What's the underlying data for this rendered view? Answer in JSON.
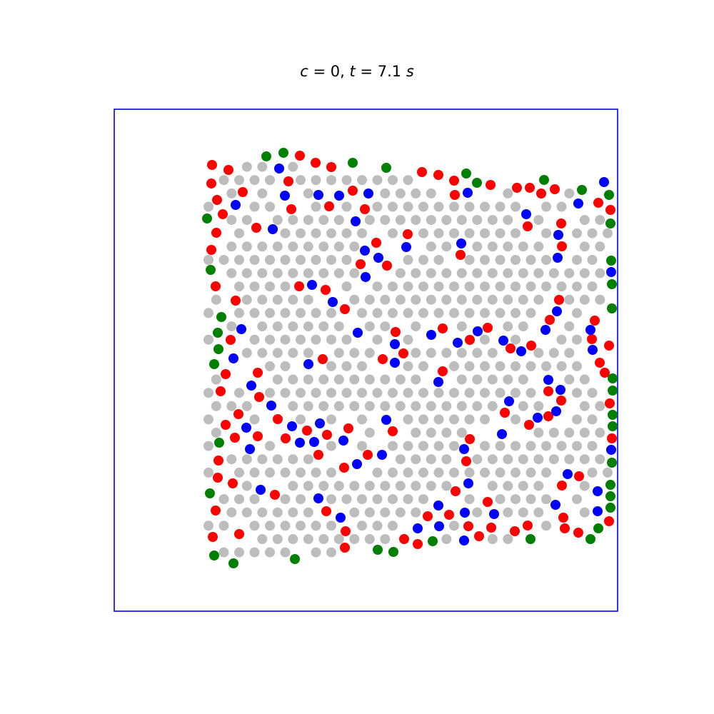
{
  "chart_data": {
    "type": "scatter",
    "title": "c = 0, t = 7.1 s",
    "xlabel": "",
    "ylabel": "",
    "grid": false,
    "frame_color": "#0000ff",
    "colors": {
      "gray": "#bdbdbd",
      "red": "#ff0000",
      "blue": "#0000ff",
      "green": "#008000"
    },
    "highlighted": {
      "red": [
        [
          297,
          231
        ],
        [
          320,
          238
        ],
        [
          296,
          257
        ],
        [
          420,
          218
        ],
        [
          442,
          228
        ],
        [
          464,
          234
        ],
        [
          404,
          254
        ],
        [
          340,
          269
        ],
        [
          304,
          280
        ],
        [
          312,
          300
        ],
        [
          408,
          293
        ],
        [
          461,
          289
        ],
        [
          494,
          267
        ],
        [
          511,
          293
        ],
        [
          303,
          326
        ],
        [
          359,
          319
        ],
        [
          296,
          350
        ],
        [
          527,
          340
        ],
        [
          542,
          372
        ],
        [
          505,
          370
        ],
        [
          571,
          328
        ],
        [
          591,
          241
        ],
        [
          614,
          245
        ],
        [
          636,
          253
        ],
        [
          637,
          273
        ],
        [
          687,
          259
        ],
        [
          724,
          263
        ],
        [
          742,
          263
        ],
        [
          758,
          271
        ],
        [
          777,
          265
        ],
        [
          739,
          317
        ],
        [
          786,
          313
        ],
        [
          645,
          357
        ],
        [
          787,
          345
        ],
        [
          302,
          401
        ],
        [
          330,
          421
        ],
        [
          419,
          401
        ],
        [
          456,
          406
        ],
        [
          483,
          433
        ],
        [
          554,
          465
        ],
        [
          565,
          495
        ],
        [
          536,
          503
        ],
        [
          620,
          460
        ],
        [
          658,
          476
        ],
        [
          683,
          459
        ],
        [
          715,
          488
        ],
        [
          744,
          484
        ],
        [
          783,
          420
        ],
        [
          770,
          448
        ],
        [
          829,
          475
        ],
        [
          853,
          484
        ],
        [
          833,
          449
        ],
        [
          840,
          508
        ],
        [
          847,
          522
        ],
        [
          323,
          476
        ],
        [
          316,
          524
        ],
        [
          361,
          522
        ],
        [
          309,
          548
        ],
        [
          363,
          556
        ],
        [
          334,
          580
        ],
        [
          316,
          595
        ],
        [
          329,
          613
        ],
        [
          361,
          611
        ],
        [
          389,
          587
        ],
        [
          400,
          614
        ],
        [
          430,
          603
        ],
        [
          458,
          609
        ],
        [
          488,
          600
        ],
        [
          452,
          503
        ],
        [
          550,
          604
        ],
        [
          620,
          520
        ],
        [
          768,
          548
        ],
        [
          786,
          561
        ],
        [
          707,
          578
        ],
        [
          741,
          595
        ],
        [
          768,
          583
        ],
        [
          306,
          645
        ],
        [
          305,
          669
        ],
        [
          326,
          677
        ],
        [
          385,
          693
        ],
        [
          446,
          637
        ],
        [
          482,
          655
        ],
        [
          515,
          637
        ],
        [
          658,
          615
        ],
        [
          653,
          646
        ],
        [
          638,
          688
        ],
        [
          683,
          703
        ],
        [
          302,
          715
        ],
        [
          457,
          716
        ],
        [
          484,
          744
        ],
        [
          483,
          767
        ],
        [
          335,
          748
        ],
        [
          298,
          752
        ],
        [
          599,
          723
        ],
        [
          629,
          721
        ],
        [
          656,
          737
        ],
        [
          671,
          751
        ],
        [
          688,
          739
        ],
        [
          721,
          744
        ],
        [
          739,
          736
        ],
        [
          789,
          725
        ],
        [
          791,
          740
        ],
        [
          810,
          746
        ],
        [
          787,
          680
        ],
        [
          811,
          667
        ],
        [
          566,
          755
        ],
        [
          585,
          762
        ],
        [
          853,
          730
        ],
        [
          855,
          294
        ],
        [
          838,
          284
        ],
        [
          854,
          565
        ],
        [
          857,
          614
        ]
      ],
      "blue": [
        [
          391,
          236
        ],
        [
          330,
          287
        ],
        [
          399,
          274
        ],
        [
          446,
          273
        ],
        [
          475,
          274
        ],
        [
          516,
          271
        ],
        [
          498,
          310
        ],
        [
          382,
          321
        ],
        [
          511,
          351
        ],
        [
          569,
          346
        ],
        [
          512,
          388
        ],
        [
          530,
          361
        ],
        [
          655,
          270
        ],
        [
          646,
          341
        ],
        [
          737,
          300
        ],
        [
          782,
          329
        ],
        [
          781,
          361
        ],
        [
          846,
          255
        ],
        [
          810,
          285
        ],
        [
          437,
          399
        ],
        [
          466,
          423
        ],
        [
          501,
          466
        ],
        [
          553,
          482
        ],
        [
          553,
          508
        ],
        [
          604,
          469
        ],
        [
          641,
          480
        ],
        [
          669,
          464
        ],
        [
          705,
          477
        ],
        [
          730,
          492
        ],
        [
          764,
          462
        ],
        [
          780,
          436
        ],
        [
          827,
          462
        ],
        [
          830,
          490
        ],
        [
          338,
          461
        ],
        [
          327,
          502
        ],
        [
          432,
          510
        ],
        [
          352,
          540
        ],
        [
          380,
          568
        ],
        [
          345,
          599
        ],
        [
          409,
          597
        ],
        [
          440,
          619
        ],
        [
          420,
          620
        ],
        [
          448,
          593
        ],
        [
          481,
          617
        ],
        [
          541,
          588
        ],
        [
          614,
          535
        ],
        [
          713,
          562
        ],
        [
          753,
          585
        ],
        [
          779,
          576
        ],
        [
          768,
          532
        ],
        [
          785,
          546
        ],
        [
          703,
          608
        ],
        [
          650,
          629
        ],
        [
          500,
          650
        ],
        [
          535,
          637
        ],
        [
          656,
          677
        ],
        [
          350,
          629
        ],
        [
          365,
          686
        ],
        [
          446,
          698
        ],
        [
          477,
          725
        ],
        [
          651,
          718
        ],
        [
          692,
          720
        ],
        [
          614,
          708
        ],
        [
          615,
          737
        ],
        [
          585,
          740
        ],
        [
          650,
          757
        ],
        [
          778,
          707
        ],
        [
          795,
          664
        ],
        [
          837,
          688
        ],
        [
          837,
          716
        ],
        [
          856,
          630
        ],
        [
          856,
          381
        ]
      ],
      "green": [
        [
          373,
          219
        ],
        [
          397,
          214
        ],
        [
          494,
          228
        ],
        [
          541,
          235
        ],
        [
          653,
          243
        ],
        [
          668,
          256
        ],
        [
          762,
          252
        ],
        [
          815,
          266
        ],
        [
          853,
          273
        ],
        [
          290,
          306
        ],
        [
          295,
          378
        ],
        [
          855,
          313
        ],
        [
          856,
          365
        ],
        [
          857,
          398
        ],
        [
          857,
          432
        ],
        [
          310,
          444
        ],
        [
          305,
          466
        ],
        [
          306,
          489
        ],
        [
          300,
          510
        ],
        [
          858,
          530
        ],
        [
          858,
          547
        ],
        [
          858,
          581
        ],
        [
          858,
          597
        ],
        [
          307,
          620
        ],
        [
          857,
          648
        ],
        [
          855,
          679
        ],
        [
          855,
          695
        ],
        [
          294,
          691
        ],
        [
          855,
          711
        ],
        [
          838,
          740
        ],
        [
          827,
          755
        ],
        [
          743,
          755
        ],
        [
          606,
          758
        ],
        [
          551,
          773
        ],
        [
          529,
          770
        ],
        [
          413,
          783
        ],
        [
          327,
          789
        ],
        [
          300,
          778
        ]
      ]
    }
  }
}
